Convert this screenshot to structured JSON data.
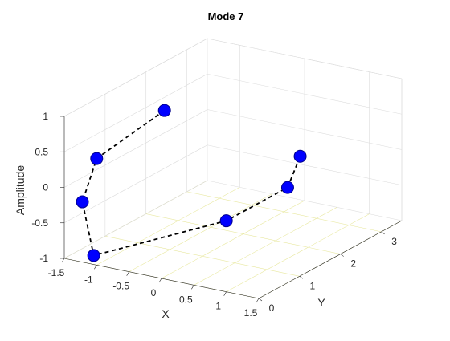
{
  "chart_data": {
    "type": "line",
    "plot_style": "3d",
    "title": "Mode 7",
    "xlabel": "X",
    "ylabel": "Y",
    "zlabel": "Amplitude",
    "xlim": [
      -1.5,
      1.5
    ],
    "ylim": [
      0,
      3.5
    ],
    "zlim": [
      -1,
      1
    ],
    "xticks": [
      "-1.5",
      "-1",
      "-0.5",
      "0",
      "0.5",
      "1",
      "1.5"
    ],
    "yticks": [
      "0",
      "1",
      "2",
      "3"
    ],
    "zticks": [
      "-1",
      "-0.5",
      "0",
      "0.5",
      "1"
    ],
    "grid": true,
    "series": [
      {
        "line_style": "dashed",
        "line_color": "#000000",
        "marker": "circle",
        "marker_color": "#0000ff",
        "points": [
          {
            "x": -0.5,
            "y": 0.866,
            "z": 1.0
          },
          {
            "x": -1.0,
            "y": 0.0,
            "z": 0.5
          },
          {
            "x": -1.0,
            "y": -0.35,
            "z": 0.0
          },
          {
            "x": -0.5,
            "y": -0.866,
            "z": -0.5
          },
          {
            "x": 1.0,
            "y": 0.0,
            "z": 0.0
          },
          {
            "x": 1.0,
            "y": 1.5,
            "z": 0.0
          },
          {
            "x": 0.5,
            "y": 2.6,
            "z": 0.0
          }
        ]
      }
    ]
  }
}
